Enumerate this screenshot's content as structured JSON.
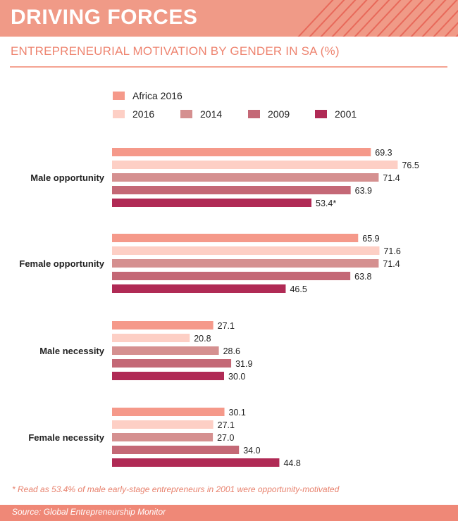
{
  "header": {
    "title": "DRIVING FORCES",
    "subtitle": "ENTREPRENEURIAL MOTIVATION BY GENDER IN SA (%)"
  },
  "footnote": "* Read as 53.4% of male early-stage entrepreneurs in 2001 were opportunity-motivated",
  "source": "Source: Global Entrepreneurship Monitor",
  "colors": {
    "header_bg": "#f09a87",
    "header_stripe": "#e8695a",
    "accent_text": "#ee8470",
    "footer_bg": "#ef8877"
  },
  "chart_data": {
    "type": "bar",
    "orientation": "horizontal",
    "categories": [
      "Male opportunity",
      "Female opportunity",
      "Male necessity",
      "Female necessity"
    ],
    "series": [
      {
        "name": "Africa 2016",
        "color": "#f5998a",
        "values": [
          69.3,
          65.9,
          27.1,
          30.1
        ],
        "labels": [
          "69.3",
          "65.9",
          "27.1",
          "30.1"
        ]
      },
      {
        "name": "2016",
        "color": "#fdcfc5",
        "values": [
          76.5,
          71.6,
          20.8,
          27.1
        ],
        "labels": [
          "76.5",
          "71.6",
          "20.8",
          "27.1"
        ]
      },
      {
        "name": "2014",
        "color": "#d59090",
        "values": [
          71.4,
          71.4,
          28.6,
          27.0
        ],
        "labels": [
          "71.4",
          "71.4",
          "28.6",
          "27.0"
        ]
      },
      {
        "name": "2009",
        "color": "#c46876",
        "values": [
          63.9,
          63.8,
          31.9,
          34.0
        ],
        "labels": [
          "63.9",
          "63.8",
          "31.9",
          "34.0"
        ]
      },
      {
        "name": "2001",
        "color": "#b02a55",
        "values": [
          53.4,
          46.5,
          30.0,
          44.8
        ],
        "labels": [
          "53.4*",
          "46.5",
          "30.0",
          "44.8"
        ]
      }
    ],
    "legend_position": "top",
    "grid": false
  }
}
